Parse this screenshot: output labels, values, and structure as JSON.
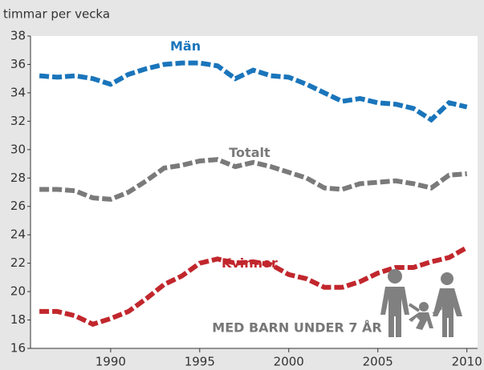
{
  "chart_data": {
    "type": "line",
    "y_label": "timmar per vecka",
    "annotation": "MED BARN UNDER 7 ÅR",
    "x": [
      1986,
      1987,
      1988,
      1989,
      1990,
      1991,
      1992,
      1993,
      1994,
      1995,
      1996,
      1997,
      1998,
      1999,
      2000,
      2001,
      2002,
      2003,
      2004,
      2005,
      2006,
      2007,
      2008,
      2009,
      2010
    ],
    "series": [
      {
        "name": "Män",
        "color": "#1a75bb",
        "values": [
          35.2,
          35.1,
          35.2,
          35.0,
          34.6,
          35.3,
          35.7,
          36.0,
          36.1,
          36.1,
          35.9,
          35.0,
          35.6,
          35.2,
          35.1,
          34.6,
          34.0,
          33.4,
          33.6,
          33.3,
          33.2,
          32.9,
          32.1,
          33.3,
          33.0
        ]
      },
      {
        "name": "Totalt",
        "color": "#7a7a7a",
        "values": [
          27.2,
          27.2,
          27.1,
          26.6,
          26.5,
          27.0,
          27.8,
          28.7,
          28.9,
          29.2,
          29.3,
          28.8,
          29.1,
          28.8,
          28.4,
          28.0,
          27.3,
          27.2,
          27.6,
          27.7,
          27.8,
          27.6,
          27.3,
          28.2,
          28.3
        ]
      },
      {
        "name": "Kvinnor",
        "color": "#c1272d",
        "values": [
          18.6,
          18.6,
          18.3,
          17.7,
          18.1,
          18.6,
          19.5,
          20.5,
          21.1,
          22.0,
          22.3,
          22.0,
          22.1,
          21.9,
          21.2,
          20.9,
          20.3,
          20.3,
          20.7,
          21.3,
          21.7,
          21.7,
          22.1,
          22.4,
          23.1
        ]
      }
    ],
    "xlim": [
      1985.5,
      2010.6
    ],
    "xticks": [
      1990,
      1995,
      2000,
      2005,
      2010
    ],
    "ylim": [
      16,
      38
    ],
    "yticks": [
      16,
      18,
      20,
      22,
      24,
      26,
      28,
      30,
      32,
      34,
      36,
      38
    ]
  }
}
